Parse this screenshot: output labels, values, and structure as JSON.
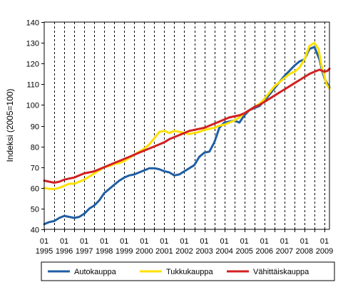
{
  "chart_data": {
    "type": "line",
    "title": "",
    "xlabel": "",
    "ylabel": "Indeksi (2005=100)",
    "ylim": [
      40,
      140
    ],
    "yticks": [
      40,
      50,
      60,
      70,
      80,
      90,
      100,
      110,
      120,
      130,
      140
    ],
    "x_range": [
      1995.0,
      2009.25
    ],
    "x_tick_month": "01",
    "x_tick_years": [
      "1995",
      "1996",
      "1997",
      "1998",
      "1999",
      "2000",
      "2001",
      "2002",
      "2003",
      "2004",
      "2005",
      "2006",
      "2007",
      "2008",
      "2009"
    ],
    "grid": "vertical dashed",
    "legend_position": "bottom",
    "series": [
      {
        "name": "Autokauppa",
        "color": "#1f5fa5",
        "points": [
          [
            1995.0,
            42.5
          ],
          [
            1995.25,
            43.5
          ],
          [
            1995.5,
            44.0
          ],
          [
            1995.75,
            45.5
          ],
          [
            1996.0,
            46.5
          ],
          [
            1996.25,
            46.0
          ],
          [
            1996.5,
            45.5
          ],
          [
            1996.75,
            46.0
          ],
          [
            1997.0,
            47.5
          ],
          [
            1997.25,
            50.0
          ],
          [
            1997.5,
            51.5
          ],
          [
            1997.75,
            54.0
          ],
          [
            1998.0,
            57.5
          ],
          [
            1998.25,
            59.5
          ],
          [
            1998.5,
            61.5
          ],
          [
            1998.75,
            63.5
          ],
          [
            1999.0,
            65.0
          ],
          [
            1999.25,
            66.0
          ],
          [
            1999.5,
            66.5
          ],
          [
            1999.75,
            67.5
          ],
          [
            2000.0,
            68.5
          ],
          [
            2000.25,
            69.5
          ],
          [
            2000.5,
            69.5
          ],
          [
            2000.75,
            69.0
          ],
          [
            2001.0,
            68.0
          ],
          [
            2001.25,
            67.5
          ],
          [
            2001.5,
            66.0
          ],
          [
            2001.75,
            66.5
          ],
          [
            2002.0,
            68.0
          ],
          [
            2002.25,
            69.5
          ],
          [
            2002.5,
            71.0
          ],
          [
            2002.75,
            75.0
          ],
          [
            2003.0,
            77.0
          ],
          [
            2003.25,
            77.5
          ],
          [
            2003.5,
            82.0
          ],
          [
            2003.75,
            89.0
          ],
          [
            2004.0,
            91.5
          ],
          [
            2004.25,
            92.0
          ],
          [
            2004.5,
            92.5
          ],
          [
            2004.75,
            91.5
          ],
          [
            2005.0,
            95.0
          ],
          [
            2005.25,
            97.5
          ],
          [
            2005.5,
            98.5
          ],
          [
            2005.75,
            99.5
          ],
          [
            2006.0,
            102.0
          ],
          [
            2006.25,
            105.0
          ],
          [
            2006.5,
            108.0
          ],
          [
            2006.75,
            111.0
          ],
          [
            2007.0,
            114.0
          ],
          [
            2007.25,
            116.5
          ],
          [
            2007.5,
            119.0
          ],
          [
            2007.75,
            121.0
          ],
          [
            2008.0,
            122.0
          ],
          [
            2008.25,
            127.0
          ],
          [
            2008.5,
            128.0
          ],
          [
            2008.75,
            122.0
          ],
          [
            2008.9,
            116.0
          ],
          [
            2009.0,
            113.0
          ],
          [
            2009.1,
            111.0
          ],
          [
            2009.25,
            108.5
          ]
        ]
      },
      {
        "name": "Tukkukauppa",
        "color": "#ffe000",
        "points": [
          [
            1995.0,
            60.0
          ],
          [
            1995.25,
            59.5
          ],
          [
            1995.5,
            59.5
          ],
          [
            1995.75,
            60.0
          ],
          [
            1996.0,
            61.0
          ],
          [
            1996.25,
            62.0
          ],
          [
            1996.5,
            62.0
          ],
          [
            1996.75,
            63.0
          ],
          [
            1997.0,
            64.0
          ],
          [
            1997.25,
            65.5
          ],
          [
            1997.5,
            67.0
          ],
          [
            1997.75,
            68.5
          ],
          [
            1998.0,
            70.0
          ],
          [
            1998.25,
            70.5
          ],
          [
            1998.5,
            71.5
          ],
          [
            1998.75,
            72.0
          ],
          [
            1999.0,
            73.0
          ],
          [
            1999.25,
            74.5
          ],
          [
            1999.5,
            76.0
          ],
          [
            1999.75,
            77.5
          ],
          [
            2000.0,
            79.0
          ],
          [
            2000.25,
            81.0
          ],
          [
            2000.5,
            84.0
          ],
          [
            2000.75,
            87.0
          ],
          [
            2001.0,
            87.5
          ],
          [
            2001.25,
            86.5
          ],
          [
            2001.5,
            87.5
          ],
          [
            2001.75,
            87.0
          ],
          [
            2002.0,
            86.5
          ],
          [
            2002.25,
            86.0
          ],
          [
            2002.5,
            86.5
          ],
          [
            2002.75,
            87.0
          ],
          [
            2003.0,
            88.0
          ],
          [
            2003.25,
            88.5
          ],
          [
            2003.5,
            89.0
          ],
          [
            2003.75,
            90.0
          ],
          [
            2004.0,
            90.5
          ],
          [
            2004.25,
            91.5
          ],
          [
            2004.5,
            92.5
          ],
          [
            2004.75,
            94.0
          ],
          [
            2005.0,
            96.0
          ],
          [
            2005.25,
            97.5
          ],
          [
            2005.5,
            99.0
          ],
          [
            2005.75,
            100.5
          ],
          [
            2006.0,
            103.0
          ],
          [
            2006.25,
            106.0
          ],
          [
            2006.5,
            109.0
          ],
          [
            2006.75,
            111.0
          ],
          [
            2007.0,
            113.0
          ],
          [
            2007.25,
            115.0
          ],
          [
            2007.5,
            116.0
          ],
          [
            2007.75,
            118.0
          ],
          [
            2008.0,
            122.0
          ],
          [
            2008.25,
            128.5
          ],
          [
            2008.5,
            130.0
          ],
          [
            2008.7,
            127.0
          ],
          [
            2008.85,
            119.0
          ],
          [
            2009.0,
            114.0
          ],
          [
            2009.1,
            110.0
          ],
          [
            2009.25,
            108.0
          ]
        ]
      },
      {
        "name": "Vähittäiskauppa",
        "color": "#d32020",
        "points": [
          [
            1995.0,
            63.5
          ],
          [
            1995.25,
            63.0
          ],
          [
            1995.5,
            62.5
          ],
          [
            1995.75,
            63.0
          ],
          [
            1996.0,
            64.0
          ],
          [
            1996.25,
            64.5
          ],
          [
            1996.5,
            65.0
          ],
          [
            1996.75,
            66.0
          ],
          [
            1997.0,
            67.0
          ],
          [
            1997.25,
            67.5
          ],
          [
            1997.5,
            68.0
          ],
          [
            1997.75,
            69.0
          ],
          [
            1998.0,
            70.0
          ],
          [
            1998.25,
            71.0
          ],
          [
            1998.5,
            72.0
          ],
          [
            1998.75,
            73.0
          ],
          [
            1999.0,
            74.0
          ],
          [
            1999.25,
            75.0
          ],
          [
            1999.5,
            76.0
          ],
          [
            1999.75,
            77.0
          ],
          [
            2000.0,
            78.0
          ],
          [
            2000.25,
            79.0
          ],
          [
            2000.5,
            80.0
          ],
          [
            2000.75,
            81.0
          ],
          [
            2001.0,
            82.0
          ],
          [
            2001.25,
            83.5
          ],
          [
            2001.5,
            84.5
          ],
          [
            2001.75,
            85.5
          ],
          [
            2002.0,
            86.5
          ],
          [
            2002.25,
            87.5
          ],
          [
            2002.5,
            88.0
          ],
          [
            2002.75,
            88.5
          ],
          [
            2003.0,
            89.0
          ],
          [
            2003.25,
            90.0
          ],
          [
            2003.5,
            91.0
          ],
          [
            2003.75,
            92.0
          ],
          [
            2004.0,
            93.0
          ],
          [
            2004.25,
            94.0
          ],
          [
            2004.5,
            94.5
          ],
          [
            2004.75,
            95.0
          ],
          [
            2005.0,
            96.0
          ],
          [
            2005.25,
            97.5
          ],
          [
            2005.5,
            99.0
          ],
          [
            2005.75,
            100.0
          ],
          [
            2006.0,
            101.5
          ],
          [
            2006.25,
            103.0
          ],
          [
            2006.5,
            104.5
          ],
          [
            2006.75,
            106.0
          ],
          [
            2007.0,
            107.5
          ],
          [
            2007.25,
            109.0
          ],
          [
            2007.5,
            110.5
          ],
          [
            2007.75,
            112.0
          ],
          [
            2008.0,
            113.5
          ],
          [
            2008.25,
            115.0
          ],
          [
            2008.5,
            116.0
          ],
          [
            2008.75,
            117.0
          ],
          [
            2009.0,
            116.0
          ],
          [
            2009.15,
            116.5
          ],
          [
            2009.25,
            117.5
          ]
        ]
      }
    ]
  }
}
